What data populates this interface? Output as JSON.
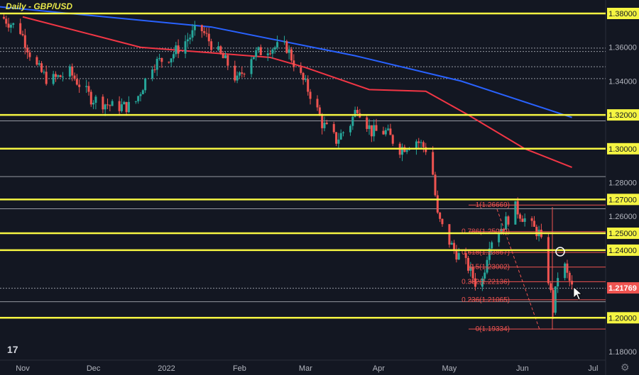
{
  "header": {
    "title": "Daily - GBP/USD"
  },
  "colors": {
    "bg": "#131722",
    "up": "#26a69a",
    "down": "#ef5350",
    "level": "#f5f542",
    "ma200": "#2962ff",
    "ma100": "#f23645",
    "fib": "#ef5350",
    "last": "#ef5350"
  },
  "chart_data": {
    "type": "candlestick",
    "title": "Daily - GBP/USD",
    "x_unit": "days since 1 Nov 2021",
    "ylim": [
      1.17,
      1.395
    ],
    "xlim": [
      -10,
      247
    ],
    "x_ticks": [
      {
        "label": "Nov",
        "day": 0
      },
      {
        "label": "Dec",
        "day": 30
      },
      {
        "label": "2022",
        "day": 61
      },
      {
        "label": "Feb",
        "day": 92
      },
      {
        "label": "Mar",
        "day": 120
      },
      {
        "label": "Apr",
        "day": 151
      },
      {
        "label": "May",
        "day": 181
      },
      {
        "label": "Jun",
        "day": 212
      },
      {
        "label": "Jul",
        "day": 242
      }
    ],
    "y_ticks": [
      "1.36000",
      "1.34000",
      "1.28000",
      "1.26000",
      "1.18000"
    ],
    "price_path": [
      [
        -9,
        1.378
      ],
      [
        -1,
        1.37
      ],
      [
        5,
        1.35
      ],
      [
        11,
        1.34
      ],
      [
        20,
        1.345
      ],
      [
        29,
        1.33
      ],
      [
        38,
        1.325
      ],
      [
        47,
        1.325
      ],
      [
        55,
        1.35
      ],
      [
        63,
        1.355
      ],
      [
        70,
        1.365
      ],
      [
        75,
        1.372
      ],
      [
        81,
        1.36
      ],
      [
        87,
        1.35
      ],
      [
        91,
        1.34
      ],
      [
        97,
        1.355
      ],
      [
        105,
        1.36
      ],
      [
        112,
        1.36
      ],
      [
        117,
        1.345
      ],
      [
        123,
        1.33
      ],
      [
        127,
        1.315
      ],
      [
        133,
        1.305
      ],
      [
        139,
        1.315
      ],
      [
        142,
        1.325
      ],
      [
        148,
        1.31
      ],
      [
        154,
        1.31
      ],
      [
        160,
        1.3
      ],
      [
        167,
        1.305
      ],
      [
        171,
        1.3
      ],
      [
        174,
        1.285
      ],
      [
        176,
        1.26
      ],
      [
        179,
        1.25
      ],
      [
        183,
        1.24
      ],
      [
        189,
        1.23
      ],
      [
        194,
        1.215
      ],
      [
        198,
        1.245
      ],
      [
        204,
        1.255
      ],
      [
        209,
        1.265
      ],
      [
        215,
        1.255
      ],
      [
        219,
        1.25
      ],
      [
        222,
        1.232
      ],
      [
        225,
        1.205
      ],
      [
        227,
        1.225
      ],
      [
        229,
        1.235
      ],
      [
        231,
        1.225
      ],
      [
        233,
        1.2177
      ]
    ],
    "ma200": [
      [
        -10,
        1.384
      ],
      [
        80,
        1.372
      ],
      [
        141,
        1.355
      ],
      [
        186,
        1.34
      ],
      [
        233,
        1.3185
      ]
    ],
    "ma100": [
      [
        0,
        1.378
      ],
      [
        50,
        1.36
      ],
      [
        105,
        1.354
      ],
      [
        120,
        1.348
      ],
      [
        147,
        1.335
      ],
      [
        171,
        1.334
      ],
      [
        189,
        1.32
      ],
      [
        213,
        1.3
      ],
      [
        233,
        1.289
      ]
    ],
    "key_levels": [
      {
        "label": "1.38000",
        "price": 1.38
      },
      {
        "label": "1.32000",
        "price": 1.32
      },
      {
        "label": "1.30000",
        "price": 1.3
      },
      {
        "label": "1.27000",
        "price": 1.27
      },
      {
        "label": "1.25000",
        "price": 1.25
      },
      {
        "label": "1.24000",
        "price": 1.24
      },
      {
        "label": "1.20000",
        "price": 1.2
      }
    ],
    "minor_levels": [
      1.3595,
      1.3575,
      1.3485,
      1.3415,
      1.3165,
      1.2835,
      1.2645,
      1.2175,
      1.2095
    ],
    "fib_levels": [
      {
        "label": "1(1.26669)",
        "price": 1.26669
      },
      {
        "label": "0.786(1.25099)",
        "price": 1.25099
      },
      {
        "label": "0.618(1.23867)",
        "price": 1.23867
      },
      {
        "label": "0.5(1.23002)",
        "price": 1.23002
      },
      {
        "label": "0.382(1.22136)",
        "price": 1.22136
      },
      {
        "label": "0.236(1.21065)",
        "price": 1.21065
      },
      {
        "label": "0(1.19334)",
        "price": 1.19334
      }
    ],
    "last_price": "1.21769"
  }
}
